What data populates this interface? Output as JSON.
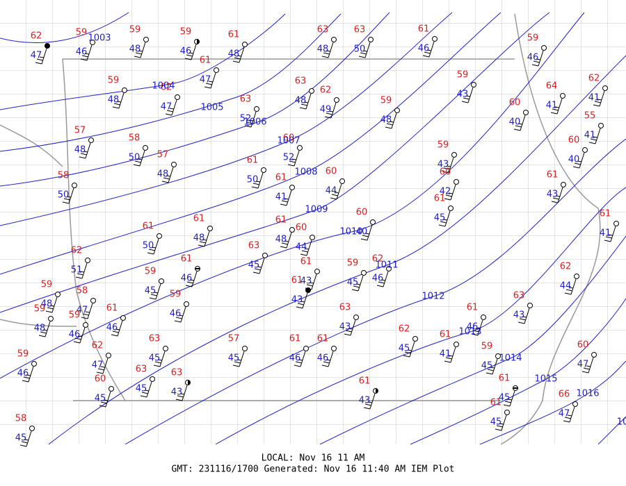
{
  "stations": [
    {
      "temp": 62,
      "dew": 47
    },
    {
      "temp": 59,
      "dew": 46
    },
    {
      "temp": 59,
      "dew": 48
    },
    {
      "temp": 59,
      "dew": 46
    },
    {
      "temp": 61,
      "dew": 48
    },
    {
      "temp": 63,
      "dew": 48
    },
    {
      "temp": 63,
      "dew": 50
    },
    {
      "temp": 61,
      "dew": 46
    },
    {
      "temp": 59,
      "dew": 46
    },
    {
      "temp": 61,
      "dew": 47
    },
    {
      "temp": 59,
      "dew": 48
    },
    {
      "temp": 62,
      "dew": 47
    },
    {
      "temp": 63,
      "dew": 52
    },
    {
      "temp": 63,
      "dew": 48
    },
    {
      "temp": 62,
      "dew": 49
    },
    {
      "temp": 59,
      "dew": 48
    },
    {
      "temp": 59,
      "dew": 43
    },
    {
      "temp": 64,
      "dew": 41
    },
    {
      "temp": 62,
      "dew": 41
    },
    {
      "temp": 60,
      "dew": 40
    },
    {
      "temp": 55,
      "dew": 41
    },
    {
      "temp": 57,
      "dew": 48
    },
    {
      "temp": 58,
      "dew": 50
    },
    {
      "temp": 57,
      "dew": 48
    },
    {
      "temp": 60,
      "dew": 52
    },
    {
      "temp": 61,
      "dew": 50
    },
    {
      "temp": 61,
      "dew": 41
    },
    {
      "temp": 60,
      "dew": 44
    },
    {
      "temp": 59,
      "dew": 43
    },
    {
      "temp": 60,
      "dew": 42
    },
    {
      "temp": 61,
      "dew": 45
    },
    {
      "temp": 60,
      "dew": 40
    },
    {
      "temp": 58,
      "dew": 50
    },
    {
      "temp": 61,
      "dew": 43
    },
    {
      "temp": 61,
      "dew": 50
    },
    {
      "temp": 61,
      "dew": 48
    },
    {
      "temp": 61,
      "dew": 48
    },
    {
      "temp": 60,
      "dew": 44
    },
    {
      "temp": 60,
      "dew": 40
    },
    {
      "temp": 61,
      "dew": 41
    },
    {
      "temp": 62,
      "dew": 51
    },
    {
      "temp": 63,
      "dew": 45
    },
    {
      "temp": 61,
      "dew": 46
    },
    {
      "temp": 59,
      "dew": 45
    },
    {
      "temp": 61,
      "dew": 43
    },
    {
      "temp": 61,
      "dew": 43
    },
    {
      "temp": 59,
      "dew": 45
    },
    {
      "temp": 62,
      "dew": 46
    },
    {
      "temp": 62,
      "dew": 44
    },
    {
      "temp": 59,
      "dew": 48
    },
    {
      "temp": 58,
      "dew": 47
    },
    {
      "temp": 59,
      "dew": 46
    },
    {
      "temp": 59,
      "dew": 48
    },
    {
      "temp": 59,
      "dew": 46
    },
    {
      "temp": 61,
      "dew": 46
    },
    {
      "temp": 63,
      "dew": 43
    },
    {
      "temp": 61,
      "dew": 46
    },
    {
      "temp": 63,
      "dew": 43
    },
    {
      "temp": 62,
      "dew": 45
    },
    {
      "temp": 61,
      "dew": 41
    },
    {
      "temp": 61,
      "dew": 46
    },
    {
      "temp": 61,
      "dew": 46
    },
    {
      "temp": 57,
      "dew": 45
    },
    {
      "temp": 63,
      "dew": 45
    },
    {
      "temp": 62,
      "dew": 47
    },
    {
      "temp": 59,
      "dew": 45
    },
    {
      "temp": 60,
      "dew": 47
    },
    {
      "temp": 59,
      "dew": 46
    },
    {
      "temp": 63,
      "dew": 45
    },
    {
      "temp": 63,
      "dew": 43
    },
    {
      "temp": 60,
      "dew": 45
    },
    {
      "temp": 61,
      "dew": 43
    },
    {
      "temp": 61,
      "dew": 45
    },
    {
      "temp": 61,
      "dew": 45
    },
    {
      "temp": 66,
      "dew": 47
    },
    {
      "temp": 58,
      "dew": 45
    }
  ],
  "isobars": [
    "1003",
    "1004",
    "1005",
    "1006",
    "1007",
    "1008",
    "1009",
    "1010",
    "1011",
    "1012",
    "1013",
    "1014",
    "1015",
    "1016",
    "10"
  ],
  "footer": {
    "local": "LOCAL: Nov 16 11 AM",
    "gmt": "GMT: 231116/1700 Generated: Nov 16 11:40 AM IEM Plot"
  }
}
